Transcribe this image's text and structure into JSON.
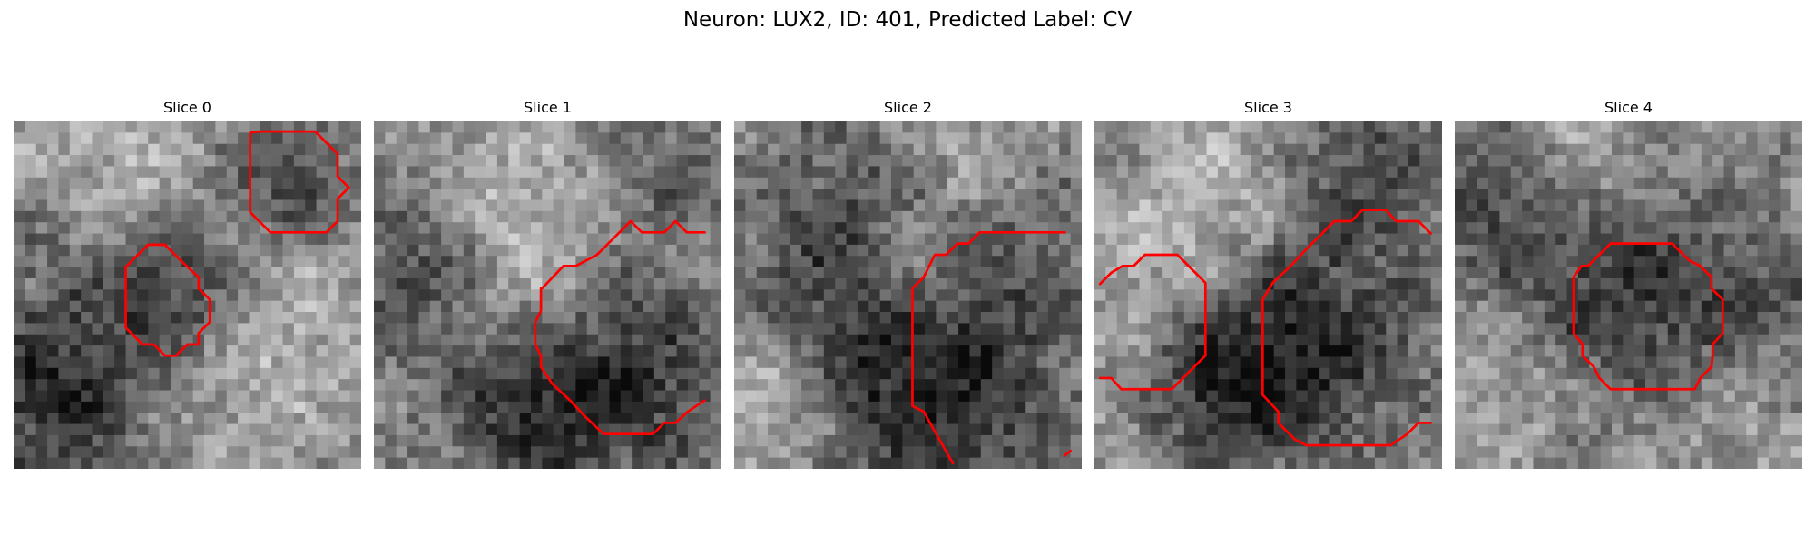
{
  "figure": {
    "title": "Neuron: LUX2, ID: 401, Predicted Label: CV",
    "contour_color": "#ff0000",
    "colormap": "gray"
  },
  "slices": [
    {
      "title": "Slice 0"
    },
    {
      "title": "Slice 1"
    },
    {
      "title": "Slice 2"
    },
    {
      "title": "Slice 3"
    },
    {
      "title": "Slice 4"
    }
  ]
}
